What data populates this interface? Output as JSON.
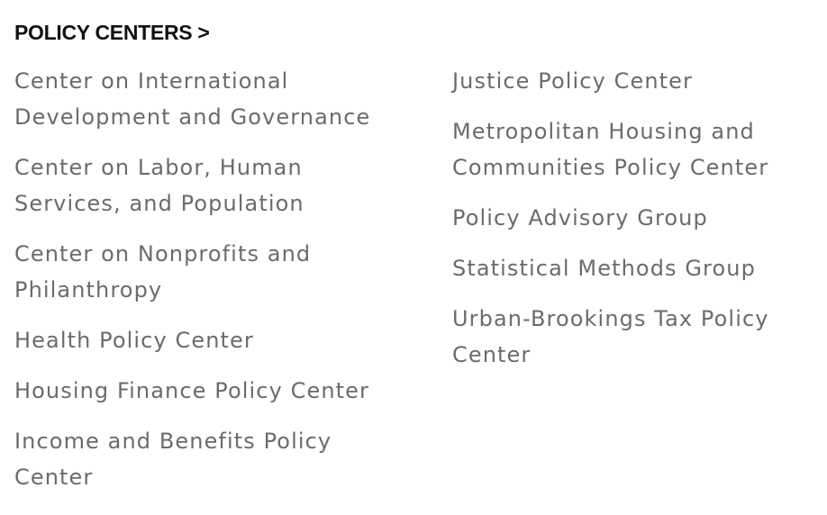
{
  "heading": {
    "label": "POLICY CENTERS >"
  },
  "columns": {
    "left": [
      {
        "label": "Center on International Development and Governance"
      },
      {
        "label": "Center on Labor, Human Services, and Population"
      },
      {
        "label": "Center on Nonprofits and Philanthropy"
      },
      {
        "label": "Health Policy Center"
      },
      {
        "label": "Housing Finance Policy Center"
      },
      {
        "label": "Income and Benefits Policy Center"
      }
    ],
    "right": [
      {
        "label": "Justice Policy Center"
      },
      {
        "label": "Metropolitan Housing and Communities Policy Center"
      },
      {
        "label": "Policy Advisory Group"
      },
      {
        "label": "Statistical Methods Group"
      },
      {
        "label": "Urban-Brookings Tax Policy Center"
      }
    ]
  },
  "colors": {
    "heading": "#111111",
    "link": "#6b6b6b",
    "background": "#ffffff"
  }
}
